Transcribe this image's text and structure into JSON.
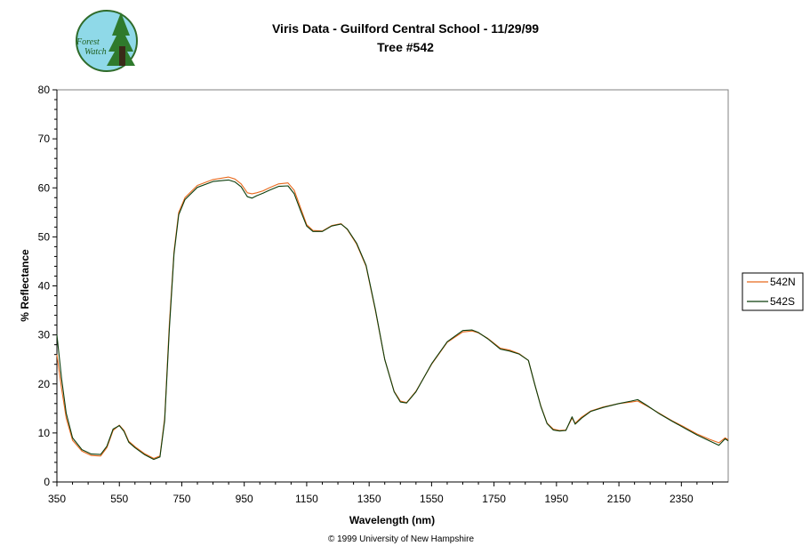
{
  "logo": {
    "line1": "Forest",
    "line2": "Watch"
  },
  "copyright": "© 1999 University of New Hampshire",
  "colors": {
    "series_n": "#e8691d",
    "series_s": "#0c3d0c",
    "logo_bg": "#8fd9e8",
    "logo_tree": "#2f7a2c"
  },
  "chart_data": {
    "type": "line",
    "title": "Viris Data - Guilford Central School - 11/29/99",
    "subtitle": "Tree #542",
    "xlabel": "Wavelength (nm)",
    "ylabel": "% Reflectance",
    "xlim": [
      350,
      2500
    ],
    "ylim": [
      0,
      80
    ],
    "xticks": [
      "350",
      "550",
      "750",
      "950",
      "1150",
      "1350",
      "1550",
      "1750",
      "1950",
      "2150",
      "2350"
    ],
    "yticks": [
      "0",
      "10",
      "20",
      "30",
      "40",
      "50",
      "60",
      "70",
      "80"
    ],
    "legend_position": "right",
    "grid": false,
    "series": [
      {
        "name": "542N",
        "x": [
          350,
          365,
          380,
          400,
          430,
          460,
          490,
          510,
          530,
          550,
          565,
          580,
          600,
          630,
          660,
          680,
          695,
          710,
          725,
          740,
          760,
          800,
          850,
          900,
          920,
          940,
          960,
          975,
          990,
          1010,
          1030,
          1060,
          1090,
          1110,
          1130,
          1150,
          1170,
          1200,
          1230,
          1260,
          1280,
          1310,
          1340,
          1370,
          1400,
          1430,
          1450,
          1470,
          1500,
          1550,
          1600,
          1650,
          1680,
          1700,
          1730,
          1770,
          1800,
          1830,
          1860,
          1880,
          1900,
          1920,
          1940,
          1960,
          1980,
          2000,
          2010,
          2030,
          2060,
          2100,
          2150,
          2190,
          2210,
          2240,
          2280,
          2320,
          2360,
          2400,
          2440,
          2470,
          2490,
          2500
        ],
        "y": [
          26,
          19,
          13,
          8.5,
          6.3,
          5.4,
          5.3,
          7,
          10.5,
          11.6,
          10.5,
          8.3,
          7.2,
          5.8,
          4.8,
          5.3,
          13,
          32,
          47,
          55,
          58,
          60.5,
          61.7,
          62.2,
          61.8,
          60.8,
          59,
          58.8,
          59,
          59.4,
          60,
          60.8,
          61,
          59.5,
          56,
          52.5,
          51.3,
          51.2,
          52.3,
          52.7,
          51.5,
          48.5,
          44,
          35,
          25,
          18.5,
          16.5,
          16.2,
          18.5,
          24,
          28.5,
          30.6,
          30.8,
          30.4,
          29.3,
          27.3,
          26.9,
          26.2,
          24.8,
          20,
          15.5,
          12,
          10.8,
          10.5,
          10.6,
          13,
          12,
          13.2,
          14.5,
          15.3,
          16,
          16.3,
          16.5,
          15.5,
          14,
          12.5,
          11.2,
          9.8,
          8.7,
          8,
          9,
          8.6
        ]
      },
      {
        "name": "542S",
        "x": [
          350,
          365,
          380,
          400,
          430,
          460,
          490,
          510,
          530,
          550,
          565,
          580,
          600,
          630,
          660,
          680,
          695,
          710,
          725,
          740,
          760,
          800,
          850,
          900,
          920,
          940,
          960,
          975,
          990,
          1010,
          1030,
          1060,
          1090,
          1110,
          1130,
          1150,
          1170,
          1200,
          1230,
          1260,
          1280,
          1310,
          1340,
          1370,
          1400,
          1430,
          1450,
          1470,
          1500,
          1550,
          1600,
          1650,
          1680,
          1700,
          1730,
          1770,
          1800,
          1830,
          1860,
          1880,
          1900,
          1920,
          1940,
          1960,
          1980,
          2000,
          2010,
          2030,
          2060,
          2100,
          2150,
          2190,
          2210,
          2240,
          2280,
          2320,
          2360,
          2400,
          2440,
          2470,
          2490,
          2500
        ],
        "y": [
          30,
          21,
          14,
          9,
          6.6,
          5.7,
          5.6,
          7.3,
          10.8,
          11.5,
          10.3,
          8.1,
          7,
          5.6,
          4.6,
          5.1,
          12.5,
          31,
          46.5,
          54.5,
          57.6,
          60.1,
          61.3,
          61.6,
          61.2,
          60.2,
          58.2,
          57.9,
          58.4,
          58.9,
          59.5,
          60.3,
          60.4,
          58.8,
          55.4,
          52.2,
          51.1,
          51.1,
          52.2,
          52.6,
          51.6,
          48.7,
          44.2,
          35.2,
          25,
          18.4,
          16.3,
          16.1,
          18.4,
          24.1,
          28.6,
          30.9,
          31,
          30.5,
          29.2,
          27.1,
          26.7,
          26.1,
          24.8,
          20,
          15.4,
          11.9,
          10.6,
          10.4,
          10.5,
          13.3,
          11.8,
          13,
          14.4,
          15.2,
          16,
          16.5,
          16.8,
          15.6,
          13.9,
          12.4,
          11,
          9.6,
          8.4,
          7.5,
          8.8,
          8.4
        ]
      }
    ]
  }
}
